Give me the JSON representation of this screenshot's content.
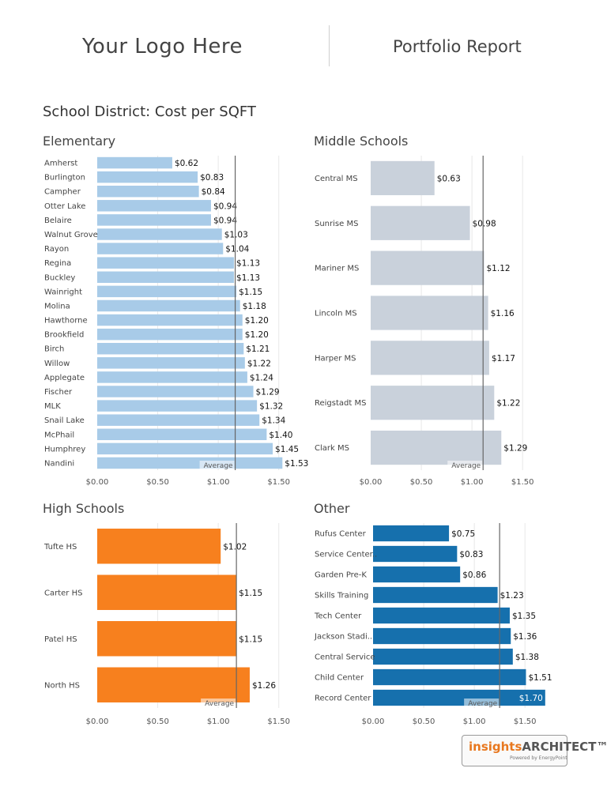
{
  "header": {
    "logo_text": "Your Logo Here",
    "report_title": "Portfolio Report"
  },
  "main_title": "School District: Cost per SQFT",
  "brand": {
    "name_left": "insights",
    "name_right": "ARCHITECT",
    "tm": "™",
    "tagline": "Powered by EnergyPoint"
  },
  "colors": {
    "elementary": "#a8cbe8",
    "middle": "#c9d1db",
    "high": "#f7801e",
    "other": "#1670ad",
    "average_line": "#666666",
    "gridline": "#e8e8e8"
  },
  "chart_data": [
    {
      "id": "elementary",
      "type": "bar",
      "orientation": "horizontal",
      "title": "Elementary",
      "categories": [
        "Amherst",
        "Burlington",
        "Campher",
        "Otter Lake",
        "Belaire",
        "Walnut Grove",
        "Rayon",
        "Regina",
        "Buckley",
        "Wainright",
        "Molina",
        "Hawthorne",
        "Brookfield",
        "Birch",
        "Willow",
        "Applegate",
        "Fischer",
        "MLK",
        "Snail Lake",
        "McPhail",
        "Humphrey",
        "Nandini"
      ],
      "values": [
        0.62,
        0.83,
        0.84,
        0.94,
        0.94,
        1.03,
        1.04,
        1.13,
        1.13,
        1.15,
        1.18,
        1.2,
        1.2,
        1.21,
        1.22,
        1.24,
        1.29,
        1.32,
        1.34,
        1.4,
        1.45,
        1.53
      ],
      "value_labels": [
        "$0.62",
        "$0.83",
        "$0.84",
        "$0.94",
        "$0.94",
        "$1.03",
        "$1.04",
        "$1.13",
        "$1.13",
        "$1.15",
        "$1.18",
        "$1.20",
        "$1.20",
        "$1.21",
        "$1.22",
        "$1.24",
        "$1.29",
        "$1.32",
        "$1.34",
        "$1.40",
        "$1.45",
        "$1.53"
      ],
      "ticks": [
        0,
        0.5,
        1.0,
        1.5
      ],
      "tick_labels": [
        "$0.00",
        "$0.50",
        "$1.00",
        "$1.50"
      ],
      "xlim": [
        0,
        1.75
      ],
      "average": 1.14,
      "average_label": "Average",
      "grid": true
    },
    {
      "id": "middle",
      "type": "bar",
      "orientation": "horizontal",
      "title": "Middle Schools",
      "categories": [
        "Central MS",
        "Sunrise MS",
        "Mariner MS",
        "Lincoln MS",
        "Harper MS",
        "Reigstadt MS",
        "Clark MS"
      ],
      "values": [
        0.63,
        0.98,
        1.12,
        1.16,
        1.17,
        1.22,
        1.29
      ],
      "value_labels": [
        "$0.63",
        "$0.98",
        "$1.12",
        "$1.16",
        "$1.17",
        "$1.22",
        "$1.29"
      ],
      "ticks": [
        0,
        0.5,
        1.0,
        1.5
      ],
      "tick_labels": [
        "$0.00",
        "$0.50",
        "$1.00",
        "$1.50"
      ],
      "xlim": [
        0,
        1.92
      ],
      "average": 1.11,
      "average_label": "Average",
      "grid": true
    },
    {
      "id": "high",
      "type": "bar",
      "orientation": "horizontal",
      "title": "High Schools",
      "categories": [
        "Tufte HS",
        "Carter HS",
        "Patel HS",
        "North HS"
      ],
      "values": [
        1.02,
        1.15,
        1.15,
        1.26
      ],
      "value_labels": [
        "$1.02",
        "$1.15",
        "$1.15",
        "$1.26"
      ],
      "ticks": [
        0,
        0.5,
        1.0,
        1.5
      ],
      "tick_labels": [
        "$0.00",
        "$0.50",
        "$1.00",
        "$1.50"
      ],
      "xlim": [
        0,
        1.75
      ],
      "average": 1.15,
      "average_label": "Average",
      "grid": true
    },
    {
      "id": "other",
      "type": "bar",
      "orientation": "horizontal",
      "title": "Other",
      "categories": [
        "Rufus Center",
        "Service Center..",
        "Garden Pre-K",
        "Skills Training",
        "Tech Center",
        "Jackson Stadi..",
        "Central Service",
        "Child Center",
        "Record Center"
      ],
      "values": [
        0.75,
        0.83,
        0.86,
        1.23,
        1.35,
        1.36,
        1.38,
        1.51,
        1.7
      ],
      "value_labels": [
        "$0.75",
        "$0.83",
        "$0.86",
        "$1.23",
        "$1.35",
        "$1.36",
        "$1.38",
        "$1.51",
        "$1.70"
      ],
      "ticks": [
        0,
        0.5,
        1.0,
        1.5
      ],
      "tick_labels": [
        "$0.00",
        "$0.50",
        "$1.00",
        "$1.50"
      ],
      "xlim": [
        0,
        1.92
      ],
      "average": 1.25,
      "average_label": "Average",
      "grid": true
    }
  ]
}
